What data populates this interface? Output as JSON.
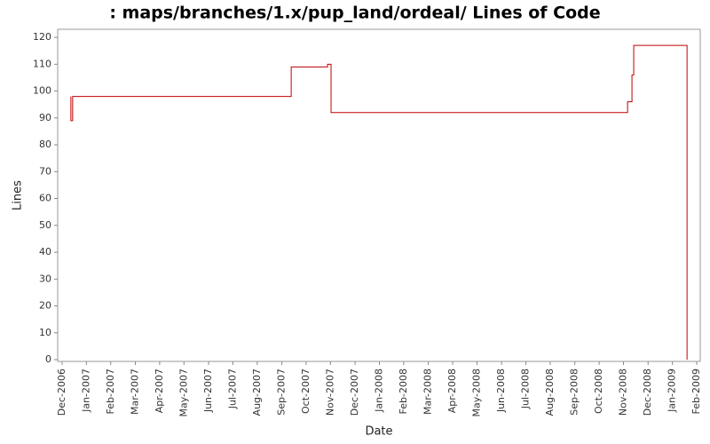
{
  "chart_data": {
    "type": "line",
    "title": ": maps/branches/1.x/pup_land/ordeal/ Lines of Code",
    "x_label": "Date",
    "y_label": "Lines",
    "color": "#c00000",
    "x": [
      2006.947,
      2006.947,
      2006.953,
      2006.953,
      2007.699,
      2007.699,
      2007.823,
      2007.823,
      2007.835,
      2007.835,
      2008.847,
      2008.847,
      2008.862,
      2008.862,
      2008.868,
      2008.868,
      2009.05,
      2009.05
    ],
    "values": [
      98,
      89,
      89,
      98,
      98,
      109,
      109,
      110,
      110,
      92,
      92,
      96,
      96,
      106,
      106,
      117,
      117,
      0
    ],
    "xlim": [
      2006.902,
      2009.095
    ],
    "xticks": [
      {
        "value": 2006.917,
        "label": "Dec-2006"
      },
      {
        "value": 2007.0,
        "label": "Jan-2007"
      },
      {
        "value": 2007.083,
        "label": "Feb-2007"
      },
      {
        "value": 2007.167,
        "label": "Mar-2007"
      },
      {
        "value": 2007.25,
        "label": "Apr-2007"
      },
      {
        "value": 2007.333,
        "label": "May-2007"
      },
      {
        "value": 2007.417,
        "label": "Jun-2007"
      },
      {
        "value": 2007.5,
        "label": "Jul-2007"
      },
      {
        "value": 2007.583,
        "label": "Aug-2007"
      },
      {
        "value": 2007.667,
        "label": "Sep-2007"
      },
      {
        "value": 2007.75,
        "label": "Oct-2007"
      },
      {
        "value": 2007.833,
        "label": "Nov-2007"
      },
      {
        "value": 2007.917,
        "label": "Dec-2007"
      },
      {
        "value": 2008.0,
        "label": "Jan-2008"
      },
      {
        "value": 2008.083,
        "label": "Feb-2008"
      },
      {
        "value": 2008.167,
        "label": "Mar-2008"
      },
      {
        "value": 2008.25,
        "label": "Apr-2008"
      },
      {
        "value": 2008.333,
        "label": "May-2008"
      },
      {
        "value": 2008.417,
        "label": "Jun-2008"
      },
      {
        "value": 2008.5,
        "label": "Jul-2008"
      },
      {
        "value": 2008.583,
        "label": "Aug-2008"
      },
      {
        "value": 2008.667,
        "label": "Sep-2008"
      },
      {
        "value": 2008.75,
        "label": "Oct-2008"
      },
      {
        "value": 2008.833,
        "label": "Nov-2008"
      },
      {
        "value": 2008.917,
        "label": "Dec-2008"
      },
      {
        "value": 2009.0,
        "label": "Jan-2009"
      },
      {
        "value": 2009.083,
        "label": "Feb-2009"
      }
    ],
    "ylim": [
      0,
      123
    ],
    "yticks": [
      0,
      10,
      20,
      30,
      40,
      50,
      60,
      70,
      80,
      90,
      100,
      110,
      120
    ],
    "grid": false
  }
}
